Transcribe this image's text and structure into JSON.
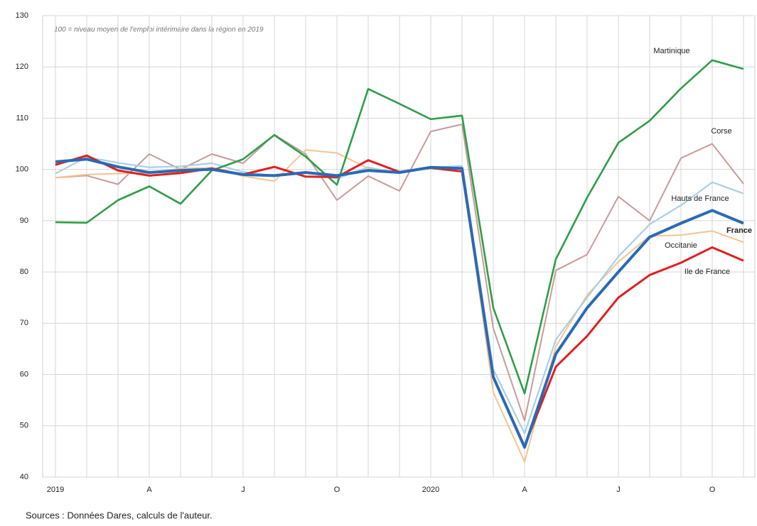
{
  "chart_data": {
    "type": "line",
    "subtitle": "100 = niveau moyen de l'emploi intérimaire dans la région en 2019",
    "source": "Sources : Données Dares, calculs de l'auteur.",
    "categories": [
      "2019",
      null,
      null,
      "A",
      null,
      null,
      "J",
      null,
      null,
      "O",
      null,
      null,
      "2020",
      null,
      null,
      "A",
      null,
      null,
      "J",
      null,
      null,
      "O",
      null
    ],
    "ylim": [
      40,
      130
    ],
    "yticks": [
      40,
      50,
      60,
      70,
      80,
      90,
      100,
      110,
      120,
      130
    ],
    "grid": true,
    "series": [
      {
        "name": "Corse",
        "color": "#c99a9a",
        "values": [
          98.4,
          98.8,
          97.1,
          103,
          100,
          103,
          101.2,
          106.8,
          103,
          94,
          98.7,
          95.8,
          107.4,
          108.8,
          69,
          51,
          80.3,
          83.4,
          94.7,
          90,
          102.2,
          105,
          97.2
        ]
      },
      {
        "name": "Occitanie",
        "color": "#f5c48e",
        "values": [
          98.4,
          99,
          99.2,
          99.3,
          100.2,
          100.3,
          98.7,
          97.7,
          103.8,
          103.2,
          100.2,
          99.5,
          100.3,
          100.3,
          56.5,
          43,
          65.5,
          75.5,
          82,
          87,
          87.2,
          88,
          85.8
        ]
      },
      {
        "name": "Hauts de France",
        "color": "#a9cfe6",
        "values": [
          99.2,
          102.4,
          101.3,
          100.4,
          100.6,
          101.2,
          99.5,
          98.7,
          99.5,
          98.2,
          100.4,
          99.3,
          100.3,
          100.7,
          61,
          48.5,
          66.8,
          75,
          83,
          89.3,
          93,
          97.5,
          95.3
        ]
      },
      {
        "name": "Martinique",
        "color": "#2e9e48",
        "values": [
          89.7,
          89.6,
          94,
          96.7,
          93.3,
          99.8,
          102,
          106.7,
          102.5,
          97,
          115.7,
          112.8,
          109.8,
          110.5,
          73,
          56.3,
          82.5,
          94.5,
          105.2,
          109.5,
          115.8,
          121.3,
          119.6
        ]
      },
      {
        "name": "Ile de France",
        "color": "#e0201e",
        "values": [
          100.9,
          102.7,
          99.8,
          98.8,
          99.3,
          100.2,
          99,
          100.5,
          98.6,
          98.5,
          101.8,
          99.5,
          100.3,
          99.6,
          59.5,
          46,
          61.5,
          67.5,
          75,
          79.4,
          81.8,
          84.8,
          82.2
        ]
      },
      {
        "name": "France",
        "color": "#2a6ab5",
        "values": [
          101.5,
          102,
          100.5,
          99.4,
          99.8,
          100,
          99,
          98.8,
          99.4,
          98.8,
          99.8,
          99.4,
          100.4,
          100.2,
          59.5,
          45.8,
          64,
          73,
          80,
          86.8,
          89.5,
          92,
          89.5
        ]
      }
    ]
  }
}
